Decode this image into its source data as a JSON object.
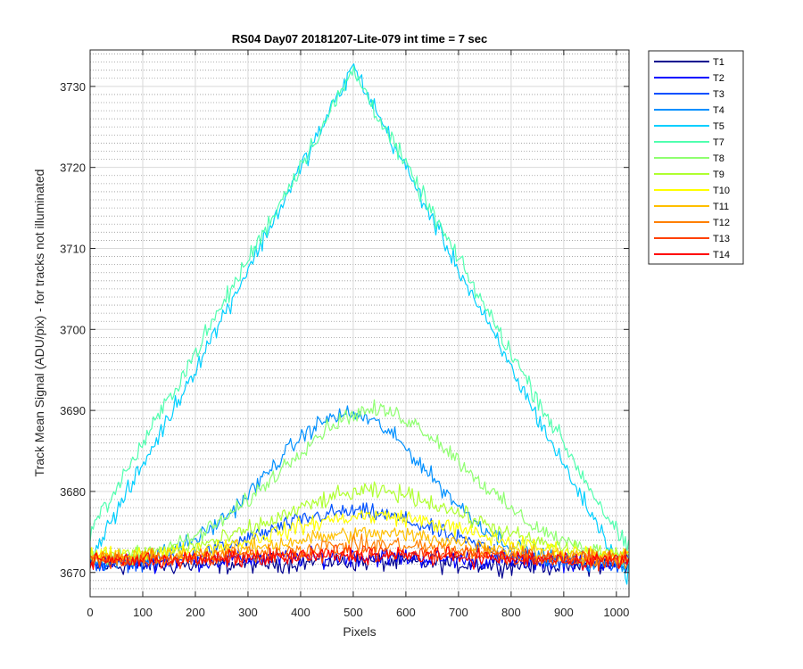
{
  "chart_data": {
    "type": "line",
    "title": "RS04 Day07 20181207-Lite-079 int time = 7 sec",
    "xlabel": "Pixels",
    "ylabel": "Track Mean Signal (ADU/pix) - for tracks not illuminated",
    "xlim": [
      0,
      1024
    ],
    "ylim": [
      3667,
      3734.5
    ],
    "xticks": [
      0,
      100,
      200,
      300,
      400,
      500,
      600,
      700,
      800,
      900,
      1000
    ],
    "yticks": [
      3670,
      3680,
      3690,
      3700,
      3710,
      3720,
      3730
    ],
    "ytick_minor_step": 1,
    "grid": "major and minor",
    "legend_position": "outside-right",
    "series": [
      {
        "name": "T1",
        "color": "#00008F",
        "base": 3670.8,
        "peak": 0.5,
        "center": 500,
        "width": 300,
        "noise": 1.0,
        "curve": "gauss"
      },
      {
        "name": "T2",
        "color": "#0000FF",
        "base": 3671.3,
        "peak": 0.6,
        "center": 500,
        "width": 300,
        "noise": 1.0,
        "curve": "gauss"
      },
      {
        "name": "T3",
        "color": "#0050FF",
        "base": 3671.0,
        "peak": 6.5,
        "center": 500,
        "width": 280,
        "noise": 0.9,
        "curve": "gauss"
      },
      {
        "name": "T4",
        "color": "#0090FF",
        "base": 3671.0,
        "peak": 18.5,
        "center": 490,
        "width": 260,
        "noise": 0.9,
        "curve": "gauss"
      },
      {
        "name": "T5",
        "color": "#00CFFF",
        "base": 3670.0,
        "peak": 62.5,
        "center": 500,
        "width": 320,
        "noise": 1.0,
        "curve": "tri"
      },
      {
        "name": "T7",
        "color": "#50FFAF",
        "base": 3670.0,
        "peak": 62.0,
        "center": 500,
        "width": 340,
        "noise": 1.0,
        "curve": "tri"
      },
      {
        "name": "T8",
        "color": "#8FFF70",
        "base": 3671.5,
        "peak": 18.5,
        "center": 540,
        "width": 300,
        "noise": 0.9,
        "curve": "gauss"
      },
      {
        "name": "T9",
        "color": "#AFFF30",
        "base": 3672.0,
        "peak": 8.0,
        "center": 540,
        "width": 300,
        "noise": 0.9,
        "curve": "gauss"
      },
      {
        "name": "T10",
        "color": "#FFFF00",
        "base": 3672.0,
        "peak": 5.0,
        "center": 540,
        "width": 300,
        "noise": 0.9,
        "curve": "gauss"
      },
      {
        "name": "T11",
        "color": "#FFBF00",
        "base": 3671.8,
        "peak": 3.0,
        "center": 540,
        "width": 300,
        "noise": 0.9,
        "curve": "gauss"
      },
      {
        "name": "T12",
        "color": "#FF8000",
        "base": 3671.6,
        "peak": 1.8,
        "center": 540,
        "width": 300,
        "noise": 0.9,
        "curve": "gauss"
      },
      {
        "name": "T13",
        "color": "#FF4000",
        "base": 3671.5,
        "peak": 1.0,
        "center": 540,
        "width": 300,
        "noise": 0.9,
        "curve": "gauss"
      },
      {
        "name": "T14",
        "color": "#FF0000",
        "base": 3671.5,
        "peak": 0.6,
        "center": 540,
        "width": 300,
        "noise": 0.9,
        "curve": "gauss"
      }
    ]
  }
}
